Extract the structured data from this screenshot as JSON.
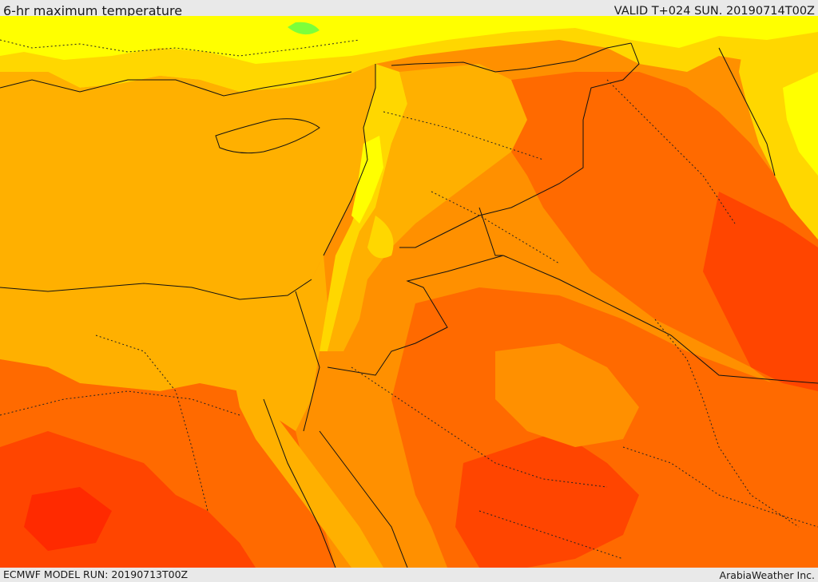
{
  "header": {
    "title": "6-hr maximum temperature",
    "valid": "VALID T+024 SUN. 20190714T00Z"
  },
  "footer": {
    "model_run": "ECMWF MODEL RUN: 20190713T00Z",
    "credit": "ArabiaWeather Inc."
  },
  "colors": {
    "yellow": "#ffff00",
    "yellow_orange": "#ffd700",
    "amber": "#ffb000",
    "orange": "#ff9000",
    "dark_orange": "#ff6a00",
    "red_orange": "#ff4500",
    "red": "#ff2a00",
    "green": "#7cff3a",
    "border_line": "#111111",
    "dotted_line": "#222222"
  }
}
